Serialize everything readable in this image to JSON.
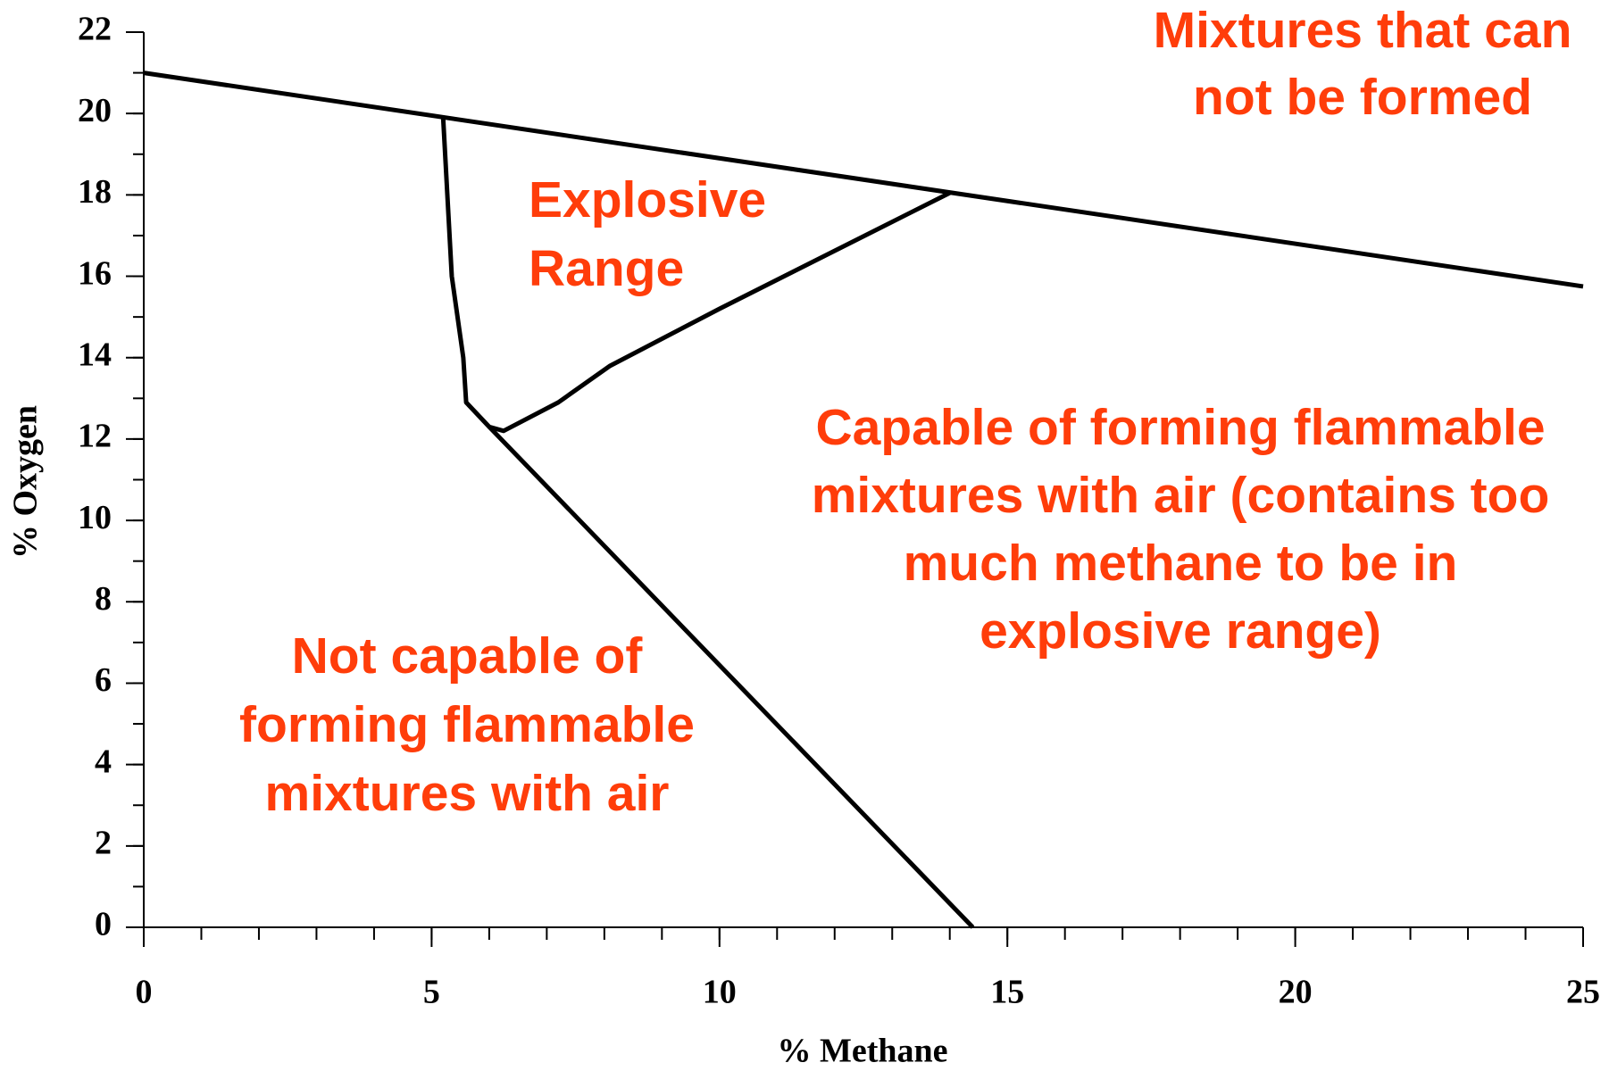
{
  "chart_data": {
    "type": "line",
    "xlabel": "% Methane",
    "ylabel": "% Oxygen",
    "xlim": [
      0,
      25
    ],
    "ylim": [
      0,
      22
    ],
    "xticks": [
      0,
      5,
      10,
      15,
      20,
      25
    ],
    "yticks": [
      0,
      2,
      4,
      6,
      8,
      10,
      12,
      14,
      16,
      18,
      20,
      22
    ],
    "xminorticks": [
      0,
      1,
      2,
      3,
      4,
      5,
      6,
      7,
      8,
      9,
      10,
      11,
      12,
      13,
      14,
      15,
      16,
      17,
      18,
      19,
      20,
      21,
      22,
      23,
      24,
      25
    ],
    "yminorticks": [
      0,
      1,
      2,
      3,
      4,
      5,
      6,
      7,
      8,
      9,
      10,
      11,
      12,
      13,
      14,
      15,
      16,
      17,
      18,
      19,
      20,
      21,
      22
    ],
    "line_color": "#000000",
    "annotation_color": "#ff3d0a",
    "series": [
      {
        "x": [
          0,
          25
        ],
        "values": [
          21,
          15.75
        ]
      },
      {
        "x": [
          5.2,
          5.35,
          5.55,
          5.6,
          6,
          6.25,
          7.2,
          8.1,
          10,
          14
        ],
        "values": [
          19.9,
          16,
          14,
          12.9,
          12.3,
          12.2,
          12.9,
          13.8,
          15.2,
          18.05
        ]
      },
      {
        "x": [
          6,
          14.4
        ],
        "values": [
          12.3,
          0
        ]
      }
    ],
    "annotations": [
      {
        "lines": [
          "Mixtures that can",
          "not be formed"
        ]
      },
      {
        "lines": [
          "Explosive",
          "Range"
        ]
      },
      {
        "lines": [
          "Capable of forming flammable",
          "mixtures with air (contains too",
          "much methane to be in",
          "explosive range)"
        ]
      },
      {
        "lines": [
          "Not capable of",
          "forming flammable",
          "mixtures with air"
        ]
      }
    ]
  }
}
